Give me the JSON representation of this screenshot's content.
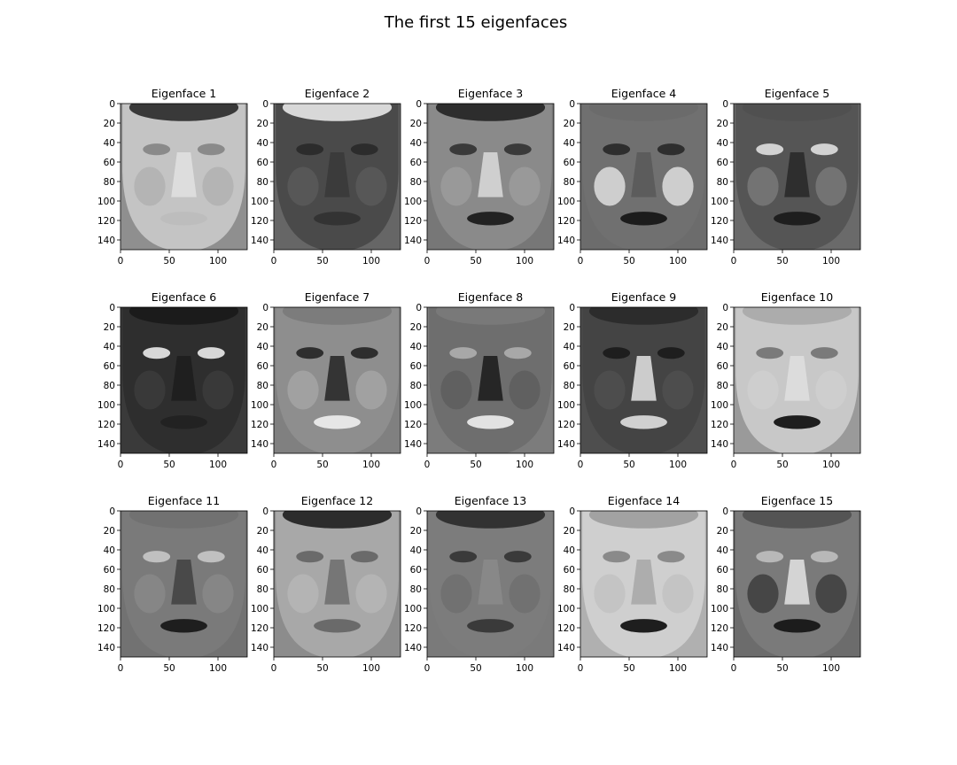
{
  "figure": {
    "title": "The first 15 eigenfaces",
    "colormap": "gray"
  },
  "chart_data": {
    "type": "heatmap",
    "title": "The first 15 eigenfaces",
    "layout": "3 rows × 5 columns",
    "image_shape": [
      150,
      130
    ],
    "xlim": [
      0,
      130
    ],
    "ylim": [
      150,
      0
    ],
    "x_ticks": [
      0,
      50,
      100
    ],
    "y_ticks": [
      0,
      20,
      40,
      60,
      80,
      100,
      120,
      140
    ],
    "panels": [
      {
        "title": "Eigenface 1",
        "style": {
          "bg": "#8f8f8f",
          "face": "#c4c4c4",
          "eyes": "#8a8a8a",
          "nose": "#e0e0e0",
          "mouth": "#bdbdbd",
          "hair": "#2a2a2a",
          "cheeks": "#b0b0b0"
        }
      },
      {
        "title": "Eigenface 2",
        "style": {
          "bg": "#666666",
          "face": "#4a4a4a",
          "eyes": "#2c2c2c",
          "nose": "#3a3a3a",
          "mouth": "#333333",
          "hair": "#e8e8e8",
          "cheeks": "#5a5a5a"
        }
      },
      {
        "title": "Eigenface 3",
        "style": {
          "bg": "#777777",
          "face": "#8a8a8a",
          "eyes": "#3a3a3a",
          "nose": "#d6d6d6",
          "mouth": "#222222",
          "hair": "#222222",
          "cheeks": "#9c9c9c"
        }
      },
      {
        "title": "Eigenface 4",
        "style": {
          "bg": "#6c6c6c",
          "face": "#707070",
          "eyes": "#2e2e2e",
          "nose": "#5a5a5a",
          "mouth": "#1c1c1c",
          "hair": "#6a6a6a",
          "cheeks": "#e6e6e6"
        }
      },
      {
        "title": "Eigenface 5",
        "style": {
          "bg": "#6a6a6a",
          "face": "#555555",
          "eyes": "#d2d2d2",
          "nose": "#2a2a2a",
          "mouth": "#1e1e1e",
          "hair": "#505050",
          "cheeks": "#7a7a7a"
        }
      },
      {
        "title": "Eigenface 6",
        "style": {
          "bg": "#3a3a3a",
          "face": "#2e2e2e",
          "eyes": "#d8d8d8",
          "nose": "#1e1e1e",
          "mouth": "#222222",
          "hair": "#1a1a1a",
          "cheeks": "#3c3c3c"
        }
      },
      {
        "title": "Eigenface 7",
        "style": {
          "bg": "#808080",
          "face": "#8e8e8e",
          "eyes": "#2e2e2e",
          "nose": "#2a2a2a",
          "mouth": "#e6e6e6",
          "hair": "#7a7a7a",
          "cheeks": "#a6a6a6"
        }
      },
      {
        "title": "Eigenface 8",
        "style": {
          "bg": "#7c7c7c",
          "face": "#6e6e6e",
          "eyes": "#a8a8a8",
          "nose": "#1e1e1e",
          "mouth": "#e2e2e2",
          "hair": "#7a7a7a",
          "cheeks": "#5c5c5c"
        }
      },
      {
        "title": "Eigenface 9",
        "style": {
          "bg": "#4e4e4e",
          "face": "#444444",
          "eyes": "#1e1e1e",
          "nose": "#dcdcdc",
          "mouth": "#d0d0d0",
          "hair": "#2a2a2a",
          "cheeks": "#505050"
        }
      },
      {
        "title": "Eigenface 10",
        "style": {
          "bg": "#9a9a9a",
          "face": "#c8c8c8",
          "eyes": "#7a7a7a",
          "nose": "#dedede",
          "mouth": "#1e1e1e",
          "hair": "#a8a8a8",
          "cheeks": "#d0d0d0"
        }
      },
      {
        "title": "Eigenface 11",
        "style": {
          "bg": "#727272",
          "face": "#7a7a7a",
          "eyes": "#c0c0c0",
          "nose": "#444444",
          "mouth": "#1e1e1e",
          "hair": "#707070",
          "cheeks": "#8a8a8a"
        }
      },
      {
        "title": "Eigenface 12",
        "style": {
          "bg": "#8c8c8c",
          "face": "#a8a8a8",
          "eyes": "#6a6a6a",
          "nose": "#707070",
          "mouth": "#6a6a6a",
          "hair": "#1e1e1e",
          "cheeks": "#b6b6b6"
        }
      },
      {
        "title": "Eigenface 13",
        "style": {
          "bg": "#7a7a7a",
          "face": "#7c7c7c",
          "eyes": "#3a3a3a",
          "nose": "#8a8a8a",
          "mouth": "#3a3a3a",
          "hair": "#2a2a2a",
          "cheeks": "#6e6e6e"
        }
      },
      {
        "title": "Eigenface 14",
        "style": {
          "bg": "#b0b0b0",
          "face": "#cfcfcf",
          "eyes": "#8a8a8a",
          "nose": "#a8a8a8",
          "mouth": "#1e1e1e",
          "hair": "#9c9c9c",
          "cheeks": "#c0c0c0"
        }
      },
      {
        "title": "Eigenface 15",
        "style": {
          "bg": "#6c6c6c",
          "face": "#7a7a7a",
          "eyes": "#b8b8b8",
          "nose": "#dedede",
          "mouth": "#1c1c1c",
          "hair": "#505050",
          "cheeks": "#3a3a3a"
        }
      }
    ]
  }
}
